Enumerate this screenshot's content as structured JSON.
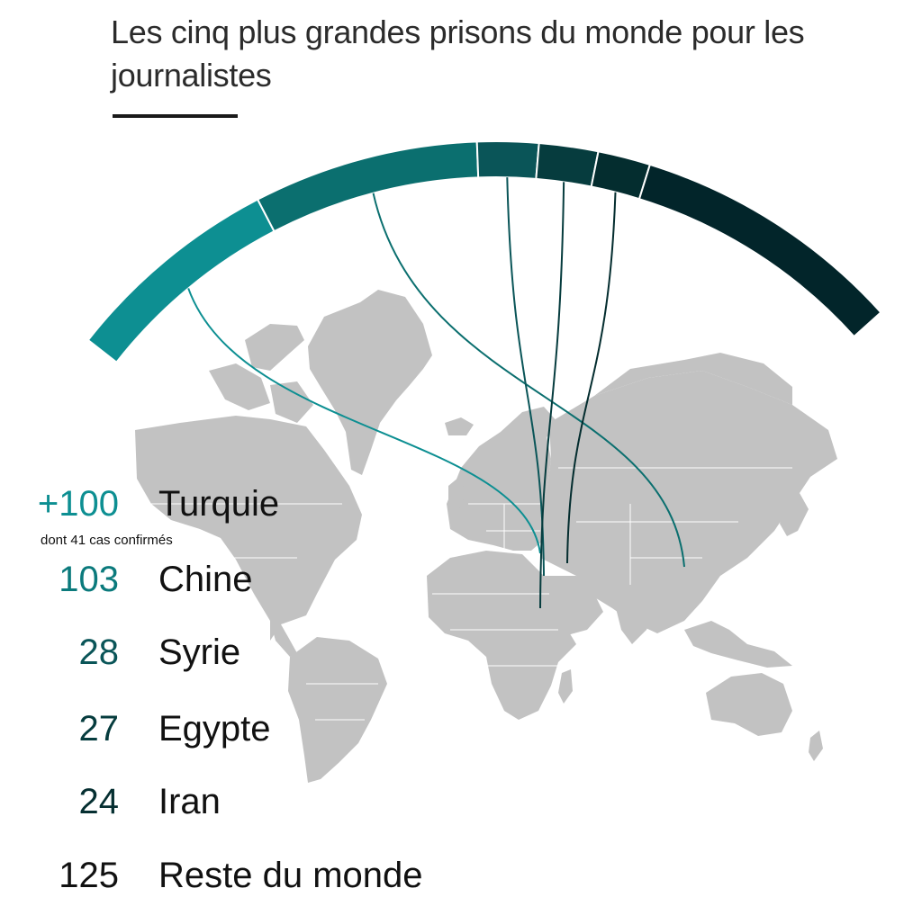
{
  "title": "Les cinq plus grandes prisons du monde pour les journalistes",
  "note": "dont 41 cas confirmés",
  "colors": {
    "map_land": "#c2c2c2",
    "map_border": "#ffffff",
    "series": [
      "#0d8f92",
      "#0b6f6f",
      "#0a5558",
      "#063c3e",
      "#042d2f",
      "#02252a"
    ]
  },
  "chart_data": {
    "type": "bar",
    "layout": "radial-arc",
    "categories": [
      "Turquie",
      "Chine",
      "Syrie",
      "Egypte",
      "Iran",
      "Reste du monde"
    ],
    "display_values": [
      "+100",
      "103",
      "28",
      "27",
      "24",
      "125"
    ],
    "values": [
      100,
      103,
      28,
      27,
      24,
      125
    ],
    "title": "Les cinq plus grandes prisons du monde pour les journalistes",
    "annotations": [
      "dont 41 cas confirmés"
    ],
    "legend": "left",
    "grid": false
  }
}
